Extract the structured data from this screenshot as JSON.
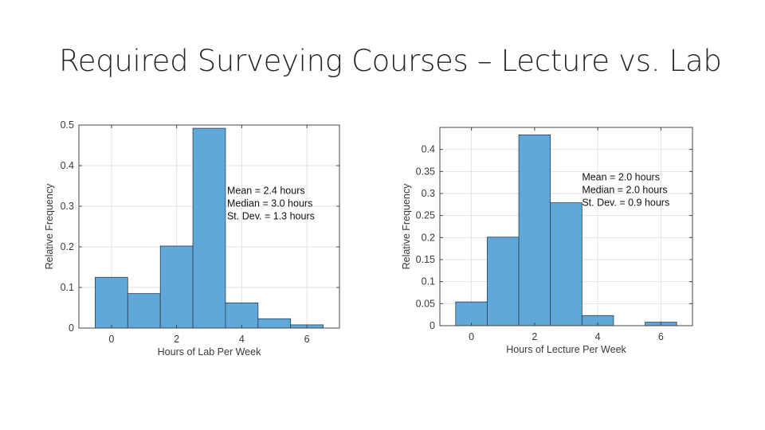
{
  "slide": {
    "title": "Required Surveying Courses – Lecture vs. Lab"
  },
  "colors": {
    "bar_fill": "#5fa8d9",
    "bar_stroke": "#2b3e4e",
    "grid": "#e2e2e2",
    "axis": "#444444"
  },
  "chart_data": [
    {
      "type": "bar",
      "subtype": "histogram",
      "bin_width": 1,
      "x": [
        0,
        1,
        2,
        3,
        4,
        5,
        6
      ],
      "values": [
        0.125,
        0.085,
        0.202,
        0.492,
        0.062,
        0.023,
        0.008
      ],
      "title": "",
      "xlabel": "Hours of Lab Per Week",
      "ylabel": "Relative Frequency",
      "xlim": [
        -1,
        7
      ],
      "ylim": [
        0,
        0.5
      ],
      "xticks": [
        0,
        2,
        4,
        6
      ],
      "xtick_labels": [
        "0",
        "2",
        "4",
        "6"
      ],
      "yticks": [
        0,
        0.1,
        0.2,
        0.3,
        0.4,
        0.5
      ],
      "ytick_labels": [
        "0",
        "0.1",
        "0.2",
        "0.3",
        "0.4",
        "0.5"
      ],
      "grid": true,
      "annotations": [
        "Mean = 2.4 hours",
        "Median = 3.0 hours",
        "St. Dev. = 1.3 hours"
      ],
      "annotation_anchor": [
        3.55,
        0.33
      ]
    },
    {
      "type": "bar",
      "subtype": "histogram",
      "bin_width": 1,
      "x": [
        0,
        1,
        2,
        3,
        4,
        5,
        6
      ],
      "values": [
        0.054,
        0.201,
        0.433,
        0.279,
        0.023,
        0,
        0.008
      ],
      "title": "",
      "xlabel": "Hours of Lecture Per Week",
      "ylabel": "Relative Frequency",
      "xlim": [
        -1,
        7
      ],
      "ylim": [
        0,
        0.45
      ],
      "xticks": [
        0,
        2,
        4,
        6
      ],
      "xtick_labels": [
        "0",
        "2",
        "4",
        "6"
      ],
      "yticks": [
        0,
        0.05,
        0.1,
        0.15,
        0.2,
        0.25,
        0.3,
        0.35,
        0.4
      ],
      "ytick_labels": [
        "0",
        "0.05",
        "0.1",
        "0.15",
        "0.2",
        "0.25",
        "0.3",
        "0.35",
        "0.4"
      ],
      "grid": true,
      "annotations": [
        "Mean = 2.0 hours",
        "Median = 2.0 hours",
        "St. Dev. = 0.9 hours"
      ],
      "annotation_anchor": [
        3.5,
        0.33
      ]
    }
  ]
}
